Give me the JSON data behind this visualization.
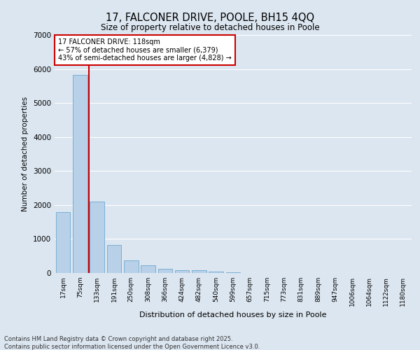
{
  "title": "17, FALCONER DRIVE, POOLE, BH15 4QQ",
  "subtitle": "Size of property relative to detached houses in Poole",
  "xlabel": "Distribution of detached houses by size in Poole",
  "ylabel": "Number of detached properties",
  "bar_color": "#b8d0e8",
  "bar_edge_color": "#7aafd4",
  "background_color": "#dce6f0",
  "grid_color": "#ffffff",
  "categories": [
    "17sqm",
    "75sqm",
    "133sqm",
    "191sqm",
    "250sqm",
    "308sqm",
    "366sqm",
    "424sqm",
    "482sqm",
    "540sqm",
    "599sqm",
    "657sqm",
    "715sqm",
    "773sqm",
    "831sqm",
    "889sqm",
    "947sqm",
    "1006sqm",
    "1064sqm",
    "1122sqm",
    "1180sqm"
  ],
  "values": [
    1800,
    5820,
    2090,
    830,
    380,
    230,
    130,
    80,
    80,
    40,
    30,
    10,
    10,
    5,
    5,
    5,
    5,
    5,
    5,
    5,
    5
  ],
  "property_label": "17 FALCONER DRIVE: 118sqm",
  "annotation_line1": "← 57% of detached houses are smaller (6,379)",
  "annotation_line2": "43% of semi-detached houses are larger (4,828) →",
  "vline_color": "#cc0000",
  "annotation_box_color": "#cc0000",
  "ylim": [
    0,
    7000
  ],
  "yticks": [
    0,
    1000,
    2000,
    3000,
    4000,
    5000,
    6000,
    7000
  ],
  "footer_line1": "Contains HM Land Registry data © Crown copyright and database right 2025.",
  "footer_line2": "Contains public sector information licensed under the Open Government Licence v3.0."
}
